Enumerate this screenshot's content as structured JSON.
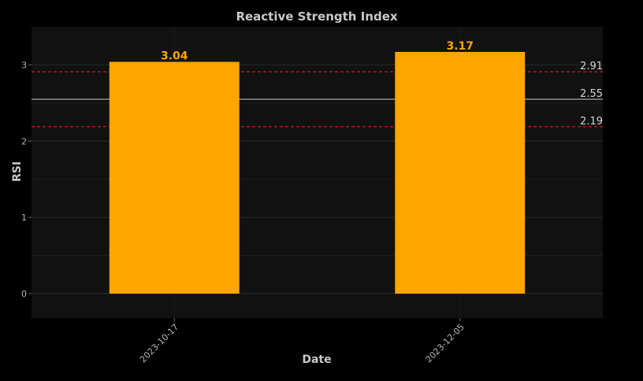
{
  "chart_data": {
    "type": "bar",
    "title": "Reactive Strength Index",
    "xlabel": "Date",
    "ylabel": "RSI",
    "categories": [
      "2023-10-17",
      "2023-12-05"
    ],
    "values": [
      3.04,
      3.17
    ],
    "value_labels": [
      "3.04",
      "3.17"
    ],
    "ylim": [
      -0.32,
      3.5
    ],
    "yticks": [
      0,
      1,
      2,
      3
    ],
    "ytick_labels": [
      "0",
      "1",
      "2",
      "3"
    ],
    "grid": true,
    "legend": "none",
    "reference_lines": [
      {
        "value": 2.91,
        "label": "2.91",
        "style": "dashed",
        "color": "#cc1a1a"
      },
      {
        "value": 2.55,
        "label": "2.55",
        "style": "solid",
        "color": "#9a9a9a"
      },
      {
        "value": 2.19,
        "label": "2.19",
        "style": "dashed",
        "color": "#cc1a1a"
      }
    ],
    "colors": {
      "bar": "#FFA500",
      "background": "#000000",
      "plot_background": "#111111",
      "grid": "#2a2a2a"
    }
  }
}
